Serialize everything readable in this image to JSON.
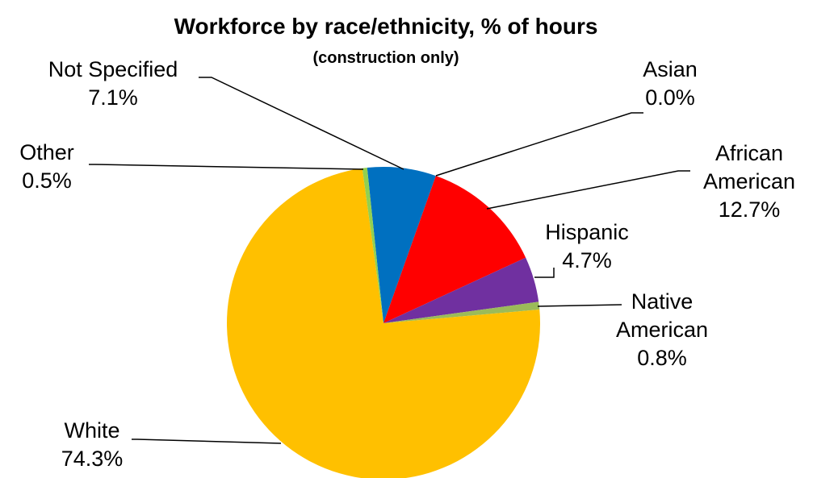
{
  "chart_data": {
    "type": "pie",
    "title": "Workforce by race/ethnicity, % of hours",
    "subtitle": "(construction only)",
    "slices": [
      {
        "name": "Not Specified",
        "label_lines": [
          "Not Specified"
        ],
        "value": 7.1,
        "value_label": "7.1%",
        "color": "#0070C0"
      },
      {
        "name": "Asian",
        "label_lines": [
          "Asian"
        ],
        "value": 0.0,
        "value_label": "0.0%",
        "color": "#00B0F0"
      },
      {
        "name": "African American",
        "label_lines": [
          "African",
          "American"
        ],
        "value": 12.7,
        "value_label": "12.7%",
        "color": "#FF0000"
      },
      {
        "name": "Hispanic",
        "label_lines": [
          "Hispanic"
        ],
        "value": 4.7,
        "value_label": "4.7%",
        "color": "#7030A0"
      },
      {
        "name": "Native American",
        "label_lines": [
          "Native",
          "American"
        ],
        "value": 0.8,
        "value_label": "0.8%",
        "color": "#9BBB59"
      },
      {
        "name": "White",
        "label_lines": [
          "White"
        ],
        "value": 74.3,
        "value_label": "74.3%",
        "color": "#FFC000"
      },
      {
        "name": "Other",
        "label_lines": [
          "Other"
        ],
        "value": 0.5,
        "value_label": "0.5%",
        "color": "#92D050"
      }
    ]
  }
}
